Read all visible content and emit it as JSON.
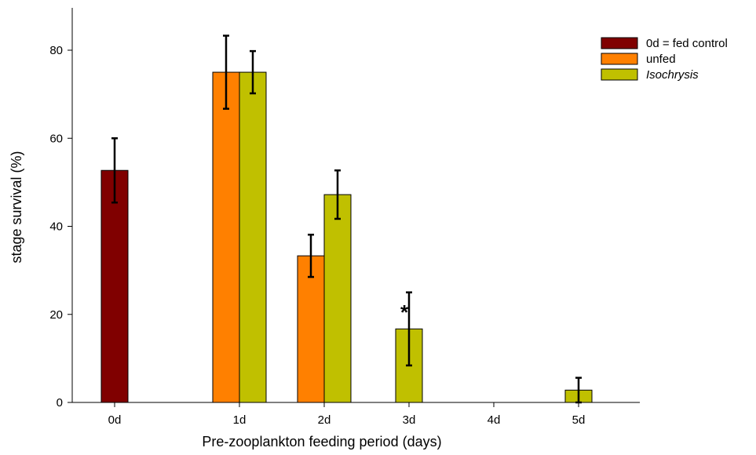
{
  "chart_data": {
    "type": "bar",
    "title": "",
    "xlabel": "Pre-zooplankton feeding period (days)",
    "ylabel": "stage survival (%)",
    "ylim": [
      0,
      90
    ],
    "yticks": [
      0,
      20,
      40,
      60,
      80
    ],
    "categories": [
      "0d",
      "1d",
      "2d",
      "3d",
      "4d",
      "5d"
    ],
    "series": [
      {
        "name": "0d = fed control",
        "italic": false,
        "color": "#800000",
        "values": [
          52.7,
          null,
          null,
          null,
          null,
          null
        ],
        "errors": [
          7.3,
          null,
          null,
          null,
          null,
          null
        ]
      },
      {
        "name": "unfed",
        "italic": false,
        "color": "#ff8000",
        "values": [
          null,
          75,
          33.3,
          null,
          null,
          null
        ],
        "errors": [
          null,
          8.3,
          4.8,
          null,
          null,
          null
        ]
      },
      {
        "name": "Isochrysis",
        "italic": true,
        "color": "#c0c000",
        "values": [
          null,
          75,
          47.2,
          16.7,
          null,
          2.8
        ],
        "errors": [
          null,
          4.8,
          5.5,
          8.3,
          null,
          2.8
        ]
      }
    ],
    "annotations": [
      {
        "text": "*",
        "category": "3d"
      }
    ],
    "legend_position": "top-right",
    "grid": false
  }
}
